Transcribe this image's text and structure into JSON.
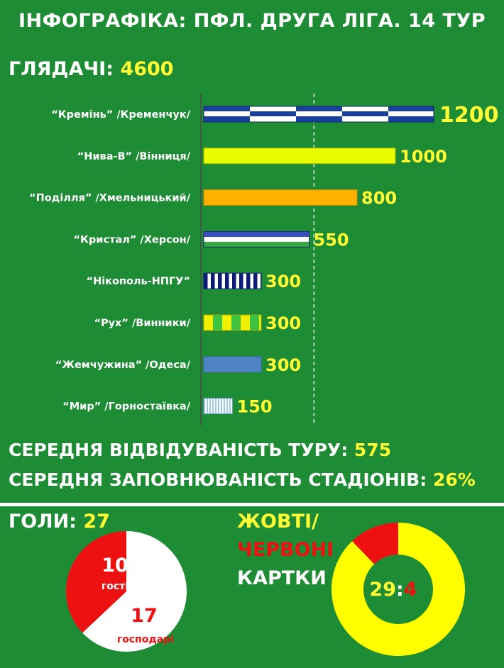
{
  "header": {
    "title": "ІНФОГРАФІКА: ПФЛ. ДРУГА  ЛІГА. 14 ТУР"
  },
  "audience": {
    "label": "ГЛЯДАЧІ:",
    "total": "4600"
  },
  "chart_data": [
    {
      "type": "bar",
      "orientation": "horizontal",
      "categories": [
        "“Кремінь” /Кременчук/",
        "“Нива-В” /Вінниця/",
        "“Поділля” /Хмельницький/",
        "“Кристал” /Херсон/",
        "“Нікополь-НПГУ”",
        "“Рух” /Винники/",
        "“Жемчужина” /Одеса/",
        "“Мир” /Горностаївка/"
      ],
      "values": [
        1200,
        1000,
        800,
        550,
        300,
        300,
        300,
        150
      ],
      "value_labels": [
        "1200",
        "1000",
        "800",
        "550",
        "300",
        "300",
        "300",
        "150"
      ],
      "reference_line": 575,
      "xlim": [
        0,
        1200
      ],
      "grid": false,
      "colors": {
        "Кремінь": "#1a3f9c",
        "Нива-В": "#e8ff00",
        "Поділля": "#ffb300",
        "Кристал": "#3b4fc0",
        "Нікополь-НПГУ": "#0c1a7a",
        "Рух": "#f0f000",
        "Жемчужина": "#4f84c4",
        "Мир": "#9ec8ee"
      }
    },
    {
      "type": "pie",
      "title": "ГОЛИ: 27",
      "slices": [
        {
          "label": "гості",
          "value": 10,
          "color": "#ee1111"
        },
        {
          "label": "господарі",
          "value": 17,
          "color": "#ffffff"
        }
      ]
    },
    {
      "type": "pie",
      "variant": "donut",
      "title": "ЖОВТІ/ЧЕРВОНІ КАРТКИ",
      "slices": [
        {
          "label": "жовті",
          "value": 29,
          "color": "#ffff00"
        },
        {
          "label": "червоні",
          "value": 4,
          "color": "#ee1111"
        }
      ],
      "center_label": "29:4"
    }
  ],
  "summary": {
    "avg_attendance_label": "СЕРЕДНЯ ВІДВІДУВАНІСТЬ ТУРУ:",
    "avg_attendance_value": "575",
    "avg_fill_label": "СЕРЕДНЯ ЗАПОВНЮВАНІСТЬ СТАДІОНІВ:",
    "avg_fill_value": "26%"
  },
  "goals": {
    "label": "ГОЛИ:",
    "total": "27",
    "away_value": "10",
    "away_label": "гості",
    "home_value": "17",
    "home_label": "господарі"
  },
  "cards": {
    "line1": "ЖОВТІ/",
    "line2": "ЧЕРВОНІ",
    "line3": "КАРТКИ",
    "yellow": "29",
    "separator": ":",
    "red": "4"
  },
  "theme": {
    "background": "#1e8c34",
    "accent_yellow": "#ffff33",
    "accent_red": "#ee1111",
    "text": "#ffffff"
  }
}
